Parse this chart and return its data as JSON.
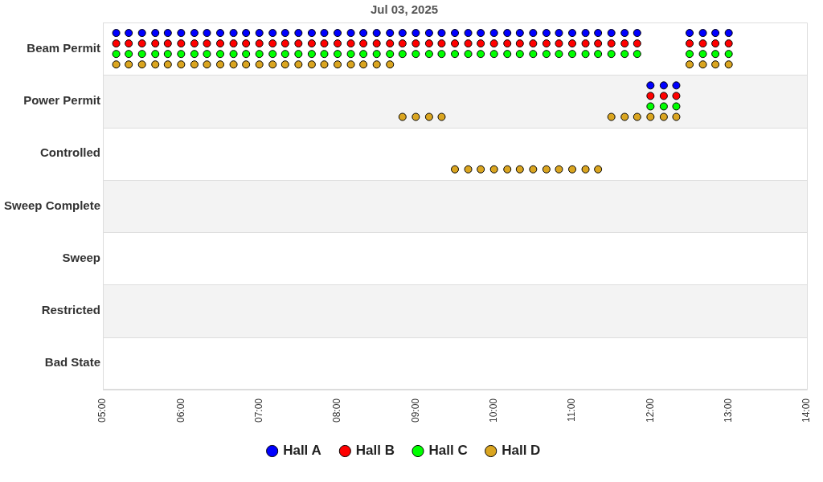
{
  "chart_data": {
    "type": "scatter",
    "title": "Jul 03, 2025",
    "orientation": "horizontal",
    "categories": [
      "Beam Permit",
      "Power Permit",
      "Controlled",
      "Sweep Complete",
      "Sweep",
      "Restricted",
      "Bad State"
    ],
    "series": [
      {
        "name": "Hall A",
        "color": "#0000ff",
        "x": [
          "Beam Permit",
          "Beam Permit",
          "Beam Permit",
          "Beam Permit",
          "Beam Permit",
          "Beam Permit",
          "Beam Permit",
          "Beam Permit",
          "Beam Permit",
          "Beam Permit",
          "Beam Permit",
          "Beam Permit",
          "Beam Permit",
          "Beam Permit",
          "Beam Permit",
          "Beam Permit",
          "Beam Permit",
          "Beam Permit",
          "Beam Permit",
          "Beam Permit",
          "Beam Permit",
          "Beam Permit",
          "Beam Permit",
          "Beam Permit",
          "Beam Permit",
          "Beam Permit",
          "Beam Permit",
          "Beam Permit",
          "Beam Permit",
          "Beam Permit",
          "Beam Permit",
          "Beam Permit",
          "Beam Permit",
          "Beam Permit",
          "Beam Permit",
          "Beam Permit",
          "Beam Permit",
          "Beam Permit",
          "Beam Permit",
          "Beam Permit",
          "Beam Permit",
          "Power Permit",
          "Power Permit",
          "Power Permit",
          "Beam Permit",
          "Beam Permit",
          "Beam Permit",
          "Beam Permit"
        ],
        "values": [
          5.17,
          5.33,
          5.5,
          5.67,
          5.83,
          6,
          6.17,
          6.33,
          6.5,
          6.67,
          6.83,
          7,
          7.17,
          7.33,
          7.5,
          7.67,
          7.83,
          8,
          8.17,
          8.33,
          8.5,
          8.67,
          8.83,
          9,
          9.17,
          9.33,
          9.5,
          9.67,
          9.83,
          10,
          10.17,
          10.33,
          10.5,
          10.67,
          10.83,
          11,
          11.17,
          11.33,
          11.5,
          11.67,
          11.83,
          12,
          12.17,
          12.33,
          12.5,
          12.67,
          12.83,
          13
        ]
      },
      {
        "name": "Hall B",
        "color": "#ff0000",
        "x": [
          "Beam Permit",
          "Beam Permit",
          "Beam Permit",
          "Beam Permit",
          "Beam Permit",
          "Beam Permit",
          "Beam Permit",
          "Beam Permit",
          "Beam Permit",
          "Beam Permit",
          "Beam Permit",
          "Beam Permit",
          "Beam Permit",
          "Beam Permit",
          "Beam Permit",
          "Beam Permit",
          "Beam Permit",
          "Beam Permit",
          "Beam Permit",
          "Beam Permit",
          "Beam Permit",
          "Beam Permit",
          "Beam Permit",
          "Beam Permit",
          "Beam Permit",
          "Beam Permit",
          "Beam Permit",
          "Beam Permit",
          "Beam Permit",
          "Beam Permit",
          "Beam Permit",
          "Beam Permit",
          "Beam Permit",
          "Beam Permit",
          "Beam Permit",
          "Beam Permit",
          "Beam Permit",
          "Beam Permit",
          "Beam Permit",
          "Beam Permit",
          "Beam Permit",
          "Power Permit",
          "Power Permit",
          "Power Permit",
          "Beam Permit",
          "Beam Permit",
          "Beam Permit",
          "Beam Permit"
        ],
        "values": [
          5.17,
          5.33,
          5.5,
          5.67,
          5.83,
          6,
          6.17,
          6.33,
          6.5,
          6.67,
          6.83,
          7,
          7.17,
          7.33,
          7.5,
          7.67,
          7.83,
          8,
          8.17,
          8.33,
          8.5,
          8.67,
          8.83,
          9,
          9.17,
          9.33,
          9.5,
          9.67,
          9.83,
          10,
          10.17,
          10.33,
          10.5,
          10.67,
          10.83,
          11,
          11.17,
          11.33,
          11.5,
          11.67,
          11.83,
          12,
          12.17,
          12.33,
          12.5,
          12.67,
          12.83,
          13
        ]
      },
      {
        "name": "Hall C",
        "color": "#00ff00",
        "x": [
          "Beam Permit",
          "Beam Permit",
          "Beam Permit",
          "Beam Permit",
          "Beam Permit",
          "Beam Permit",
          "Beam Permit",
          "Beam Permit",
          "Beam Permit",
          "Beam Permit",
          "Beam Permit",
          "Beam Permit",
          "Beam Permit",
          "Beam Permit",
          "Beam Permit",
          "Beam Permit",
          "Beam Permit",
          "Beam Permit",
          "Beam Permit",
          "Beam Permit",
          "Beam Permit",
          "Beam Permit",
          "Beam Permit",
          "Beam Permit",
          "Beam Permit",
          "Beam Permit",
          "Beam Permit",
          "Beam Permit",
          "Beam Permit",
          "Beam Permit",
          "Beam Permit",
          "Beam Permit",
          "Beam Permit",
          "Beam Permit",
          "Beam Permit",
          "Beam Permit",
          "Beam Permit",
          "Beam Permit",
          "Beam Permit",
          "Beam Permit",
          "Beam Permit",
          "Power Permit",
          "Power Permit",
          "Power Permit",
          "Beam Permit",
          "Beam Permit",
          "Beam Permit",
          "Beam Permit"
        ],
        "values": [
          5.17,
          5.33,
          5.5,
          5.67,
          5.83,
          6,
          6.17,
          6.33,
          6.5,
          6.67,
          6.83,
          7,
          7.17,
          7.33,
          7.5,
          7.67,
          7.83,
          8,
          8.17,
          8.33,
          8.5,
          8.67,
          8.83,
          9,
          9.17,
          9.33,
          9.5,
          9.67,
          9.83,
          10,
          10.17,
          10.33,
          10.5,
          10.67,
          10.83,
          11,
          11.17,
          11.33,
          11.5,
          11.67,
          11.83,
          12,
          12.17,
          12.33,
          12.5,
          12.67,
          12.83,
          13
        ]
      },
      {
        "name": "Hall D",
        "color": "#daa520",
        "x": [
          "Beam Permit",
          "Beam Permit",
          "Beam Permit",
          "Beam Permit",
          "Beam Permit",
          "Beam Permit",
          "Beam Permit",
          "Beam Permit",
          "Beam Permit",
          "Beam Permit",
          "Beam Permit",
          "Beam Permit",
          "Beam Permit",
          "Beam Permit",
          "Beam Permit",
          "Beam Permit",
          "Beam Permit",
          "Beam Permit",
          "Beam Permit",
          "Beam Permit",
          "Beam Permit",
          "Beam Permit",
          "Power Permit",
          "Power Permit",
          "Power Permit",
          "Power Permit",
          "Controlled",
          "Controlled",
          "Controlled",
          "Controlled",
          "Controlled",
          "Controlled",
          "Controlled",
          "Controlled",
          "Controlled",
          "Controlled",
          "Controlled",
          "Controlled",
          "Power Permit",
          "Power Permit",
          "Power Permit",
          "Power Permit",
          "Power Permit",
          "Power Permit",
          "Beam Permit",
          "Beam Permit",
          "Beam Permit",
          "Beam Permit"
        ],
        "values": [
          5.17,
          5.33,
          5.5,
          5.67,
          5.83,
          6,
          6.17,
          6.33,
          6.5,
          6.67,
          6.83,
          7,
          7.17,
          7.33,
          7.5,
          7.67,
          7.83,
          8,
          8.17,
          8.33,
          8.5,
          8.67,
          8.83,
          9,
          9.17,
          9.33,
          9.5,
          9.67,
          9.83,
          10,
          10.17,
          10.33,
          10.5,
          10.67,
          10.83,
          11,
          11.17,
          11.33,
          11.5,
          11.67,
          11.83,
          12,
          12.17,
          12.33,
          12.5,
          12.67,
          12.83,
          13
        ]
      }
    ],
    "xlim": [
      5,
      14
    ],
    "xticks": [
      {
        "value": 5,
        "label": "05:00"
      },
      {
        "value": 6,
        "label": "06:00"
      },
      {
        "value": 7,
        "label": "07:00"
      },
      {
        "value": 8,
        "label": "08:00"
      },
      {
        "value": 9,
        "label": "09:00"
      },
      {
        "value": 10,
        "label": "10:00"
      },
      {
        "value": 11,
        "label": "11:00"
      },
      {
        "value": 12,
        "label": "12:00"
      },
      {
        "value": 13,
        "label": "13:00"
      },
      {
        "value": 14,
        "label": "14:00"
      }
    ],
    "grid": "y",
    "legend": "bottom",
    "marker": "circle"
  }
}
